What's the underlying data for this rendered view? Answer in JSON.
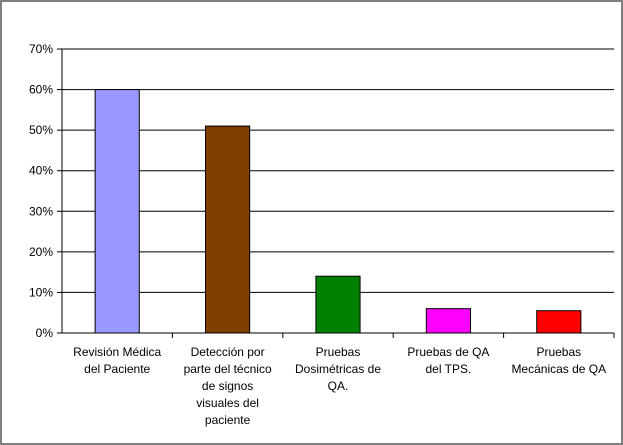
{
  "chart_data": {
    "type": "bar",
    "title": "",
    "xlabel": "",
    "ylabel": "",
    "ylim": [
      0,
      0.7
    ],
    "yticks": [
      "0%",
      "10%",
      "20%",
      "30%",
      "40%",
      "50%",
      "60%",
      "70%"
    ],
    "grid": true,
    "legend": false,
    "categories": [
      [
        "Revisión Médica",
        "del Paciente"
      ],
      [
        "Detección por",
        "parte del técnico",
        "de signos",
        "visuales del",
        "paciente"
      ],
      [
        "Pruebas",
        "Dosimétricas de",
        "QA."
      ],
      [
        "Pruebas de QA",
        "del TPS."
      ],
      [
        "Pruebas",
        "Mecánicas de QA"
      ]
    ],
    "values": [
      0.6,
      0.51,
      0.14,
      0.06,
      0.055
    ],
    "colors": [
      "#9999ff",
      "#7f3f00",
      "#008000",
      "#ff00ff",
      "#ff0000"
    ]
  }
}
